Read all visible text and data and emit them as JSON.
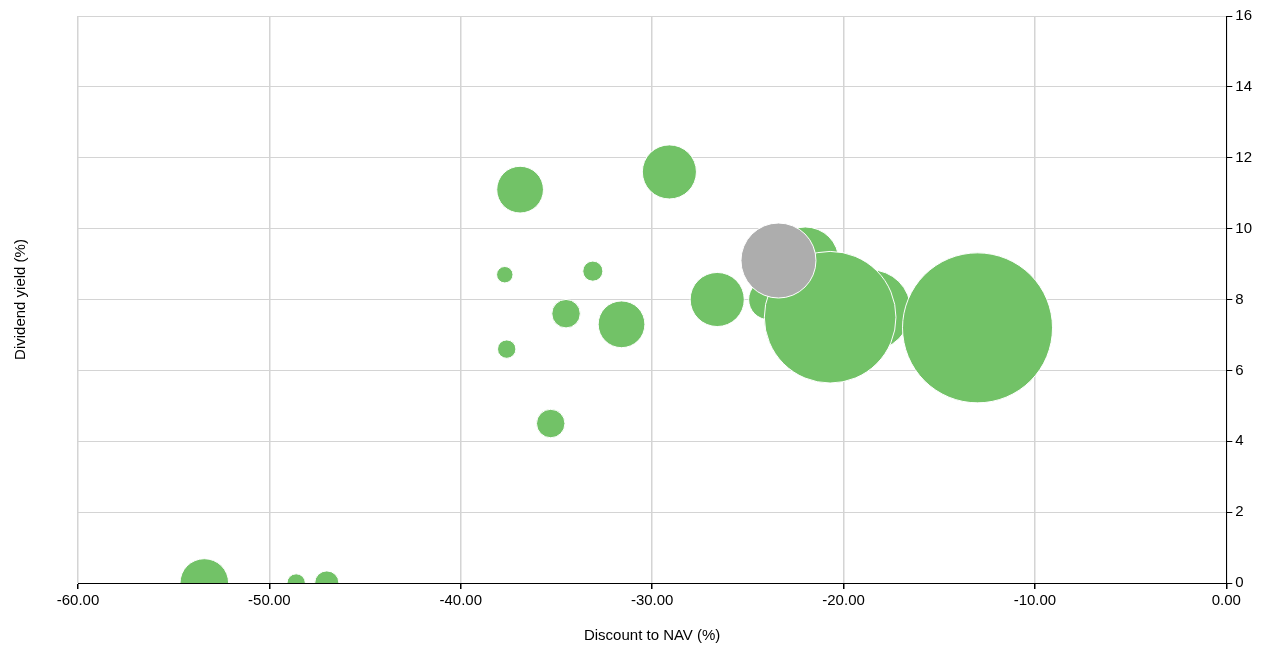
{
  "chart_data": {
    "type": "bubble",
    "xlabel": "Discount to NAV (%)",
    "ylabel": "Dividend yield (%)",
    "xlim": [
      -60,
      0
    ],
    "xticks": [
      {
        "value": -60,
        "label": "-60.00"
      },
      {
        "value": -50,
        "label": "-50.00"
      },
      {
        "value": -40,
        "label": "-40.00"
      },
      {
        "value": -30,
        "label": "-30.00"
      },
      {
        "value": -20,
        "label": "-20.00"
      },
      {
        "value": -10,
        "label": "-10.00"
      },
      {
        "value": 0,
        "label": "0.00"
      }
    ],
    "ylim": [
      0,
      16
    ],
    "yticks": [
      0,
      2,
      4,
      6,
      8,
      10,
      12,
      14,
      16
    ],
    "grid": true,
    "legend": false,
    "series": [
      {
        "color": "#72c267",
        "x": [
          -53.4,
          -48.6,
          -47.0,
          -36.9,
          -37.7,
          -37.6,
          -34.5,
          -35.3,
          -33.1,
          -31.6,
          -29.1,
          -26.6,
          -22.0,
          -23.9,
          -18.6,
          -20.7,
          -13.0
        ],
        "values": [
          0,
          0,
          0,
          11.1,
          8.7,
          6.6,
          7.6,
          4.5,
          8.8,
          7.3,
          11.6,
          8.0,
          9.1,
          8.0,
          7.7,
          7.5,
          7.2
        ],
        "sizes": [
          0.105,
          0.015,
          0.026,
          0.097,
          0.012,
          0.015,
          0.036,
          0.036,
          0.018,
          0.097,
          0.13,
          0.13,
          0.2,
          0.073,
          0.29,
          0.77,
          1
        ]
      },
      {
        "color": "#adadad",
        "x": [
          -23.4
        ],
        "values": [
          9.1
        ],
        "sizes": [
          0.25
        ]
      }
    ]
  }
}
